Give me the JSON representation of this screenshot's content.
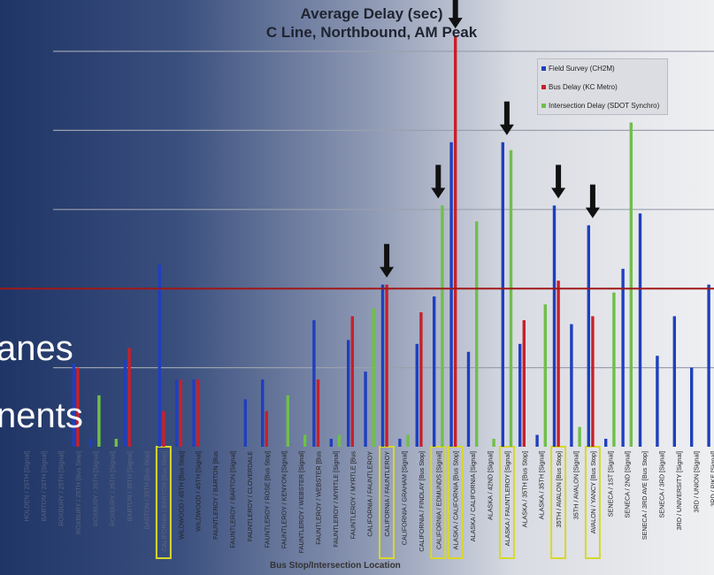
{
  "slide": {
    "overlay_line1": "anes",
    "overlay_line2": "nents"
  },
  "chart_data": {
    "type": "bar",
    "title": "Average Delay (sec)",
    "subtitle": "C Line, Northbound, AM Peak",
    "xlabel": "Bus Stop/Intersection Location",
    "ylabel": "",
    "ylim": [
      0,
      100
    ],
    "reference_line": 40,
    "legend_position": "top-right",
    "colors": {
      "Field Survey (CH2M)": "#1f3fbf",
      "Bus Delay (KC Metro)": "#c8202a",
      "Intersection Delay (SDOT Synchro)": "#6fbf4a",
      "reference": "#a01818",
      "highlight": "#d8d82a",
      "arrow": "#111111"
    },
    "categories": [
      "HOLDEN / 25TH [Signal]",
      "BARTON / 26TH [Signal]",
      "ROXBURY / 25TH [Signal]",
      "ROXBURY / 25TH [Bus Stop]",
      "ROXBURY / 35TH [Signal]",
      "ROXBURY / 35TH [Signal]",
      "BARTON / 35TH [Signal]",
      "BARTON / 35TH [Bus Stop]",
      "CALIFORNIA / BARTON [Bus Stop]",
      "WILDWOOD / 45TH [Bus Stop]",
      "WILDWOOD / 45TH [Signal]",
      "FAUNTLEROY / BARTON [Bus",
      "FAUNTLEROY / BARTON [Signal]",
      "FAUNTLEROY / CLOVERDALE",
      "FAUNTLEROY / ROSE [Bus Stop]",
      "FAUNTLEROY / KENYON [Signal]",
      "FAUNTLEROY / WEBSTER [Signal]",
      "FAUNTLEROY / WEBSTER [Bus",
      "FAUNTLEROY / MYRTLE [Signal]",
      "FAUNTLEROY / MYRTLE [Bus",
      "CALIFORNIA / FAUNTLEROY",
      "CALIFORNIA / FAUNTLEROY",
      "CALIFORNIA / GRAHAM [Signal]",
      "CALIFORNIA / FINDLAY [Bus Stop]",
      "CALIFORNIA / EDMUNDS [Signal]",
      "ALASKA / CALIFORNIA [Bus Stop]",
      "ALASKA / CALIFORNIA [Signal]",
      "ALASKA / 42ND [Signal]",
      "ALASKA / FAUNTLEROY [Signal]",
      "ALASKA / 35TH [Bus Stop]",
      "ALASKA / 35TH [Signal]",
      "35TH / AVALON [Bus Stop]",
      "35TH / AVALON [Signal]",
      "AVALON / YANCY [Bus Stop]",
      "SENECA / 1ST [Signal]",
      "SENECA / 2ND [Signal]",
      "SENECA / 3RD AVE [Bus Stop]",
      "SENECA / 3RD [Signal]",
      "3RD / UNIVERSITY [Signal]",
      "3RD / UNION [Signal]",
      "3RD / PIKE [Signal]"
    ],
    "highlighted_categories": [
      8,
      21,
      24,
      25,
      28,
      31,
      33
    ],
    "arrow_categories": [
      21,
      24,
      25,
      28,
      31,
      33
    ],
    "series": [
      {
        "name": "Field Survey (CH2M)",
        "values": [
          0,
          0,
          0,
          21,
          2,
          0,
          22,
          0,
          46,
          17,
          17,
          0,
          0,
          12,
          17,
          0,
          0,
          32,
          2,
          27,
          19,
          41,
          2,
          26,
          38,
          77,
          24,
          0,
          77,
          26,
          3,
          61,
          31,
          56,
          2,
          45,
          59,
          23,
          33,
          20,
          41
        ]
      },
      {
        "name": "Bus Delay (KC Metro)",
        "values": [
          0,
          0,
          0,
          20,
          0,
          0,
          25,
          0,
          9,
          17,
          17,
          0,
          0,
          0,
          9,
          0,
          0,
          17,
          0,
          33,
          0,
          41,
          0,
          34,
          0,
          104,
          0,
          0,
          0,
          32,
          0,
          42,
          0,
          33,
          0,
          0,
          0,
          0,
          0,
          0,
          0
        ]
      },
      {
        "name": "Intersection Delay (SDOT Synchro)",
        "values": [
          0,
          0,
          0,
          0,
          13,
          2,
          0,
          0,
          0,
          0,
          0,
          0,
          0,
          0,
          0,
          13,
          3,
          0,
          3,
          0,
          35,
          0,
          3,
          0,
          61,
          0,
          57,
          2,
          75,
          0,
          36,
          0,
          5,
          0,
          39,
          82,
          0,
          0,
          0,
          0,
          0
        ]
      }
    ]
  }
}
